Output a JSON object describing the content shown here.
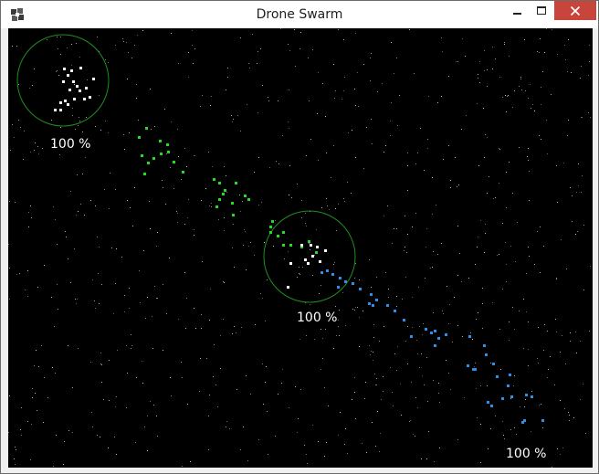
{
  "window": {
    "title": "Drone Swarm",
    "app_icon": "drone-swarm-app-icon",
    "controls": [
      "minimize-icon",
      "maximize-icon",
      "close-icon"
    ]
  },
  "colors": {
    "background": "#000000",
    "player_drones": "#ffffff",
    "green_swarm": "#22dd22",
    "blue_swarm": "#2f8fe6",
    "selection_ring": "#1e8f1e",
    "close_button": "#c7453a"
  },
  "groups": [
    {
      "id": "top-left",
      "label": "100 %"
    },
    {
      "id": "center",
      "label": "100 %"
    },
    {
      "id": "bottom-right",
      "label": "100 %"
    }
  ]
}
